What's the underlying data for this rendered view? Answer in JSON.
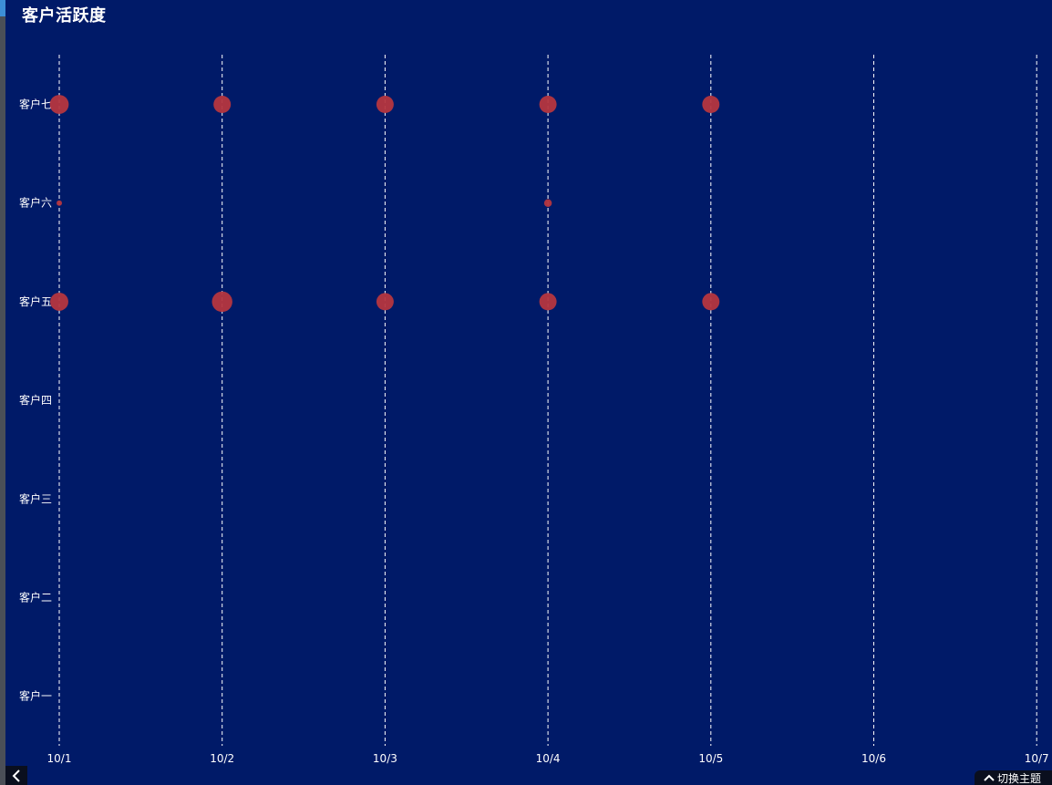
{
  "title": "客户活跃度",
  "theme_button": {
    "label": "切换主题",
    "icon": "chevron-up-icon"
  },
  "collapse_button": {
    "icon": "chevron-left-icon"
  },
  "colors": {
    "background": "#001a68",
    "grid": "#ffffff",
    "bubble": "#b5363f",
    "text": "#ffffff"
  },
  "chart_data": {
    "type": "scatter",
    "title": "客户活跃度",
    "x_categories": [
      "10/1",
      "10/2",
      "10/3",
      "10/4",
      "10/5",
      "10/6",
      "10/7"
    ],
    "y_categories": [
      "客户一",
      "客户二",
      "客户三",
      "客户四",
      "客户五",
      "客户六",
      "客户七"
    ],
    "grid": "vertical dashed",
    "series": [
      {
        "points": [
          {
            "x": "10/1",
            "y": "客户七",
            "value": 12
          },
          {
            "x": "10/2",
            "y": "客户七",
            "value": 10
          },
          {
            "x": "10/3",
            "y": "客户七",
            "value": 10
          },
          {
            "x": "10/4",
            "y": "客户七",
            "value": 10
          },
          {
            "x": "10/5",
            "y": "客户七",
            "value": 10
          },
          {
            "x": "10/1",
            "y": "客户六",
            "value": 1
          },
          {
            "x": "10/4",
            "y": "客户六",
            "value": 2
          },
          {
            "x": "10/1",
            "y": "客户五",
            "value": 11
          },
          {
            "x": "10/2",
            "y": "客户五",
            "value": 14
          },
          {
            "x": "10/3",
            "y": "客户五",
            "value": 10
          },
          {
            "x": "10/4",
            "y": "客户五",
            "value": 10
          },
          {
            "x": "10/5",
            "y": "客户五",
            "value": 10
          }
        ]
      }
    ]
  }
}
